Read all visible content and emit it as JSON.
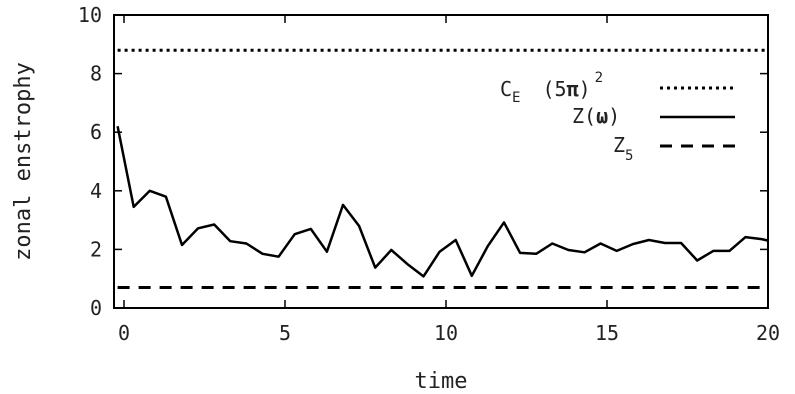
{
  "chart_data": {
    "type": "line",
    "xlabel": "time",
    "ylabel": "zonal enstrophy",
    "xlim": [
      0,
      20
    ],
    "ylim": [
      0,
      10
    ],
    "xticks": [
      0,
      5,
      10,
      15,
      20
    ],
    "yticks": [
      0,
      2,
      4,
      6,
      8,
      10
    ],
    "grid": false,
    "legend_position": "top-right",
    "legend": {
      "ce": {
        "main": "C",
        "sub": "E",
        "mid": "(5",
        "pi": "π",
        "close": ")",
        "sup": "2"
      },
      "zw": {
        "main": "Z(",
        "omega": "ω",
        "close": ")"
      },
      "z5": {
        "main": "Z",
        "sub": "5"
      }
    },
    "series": [
      {
        "style": "dotted",
        "x": [
          -0.2,
          20
        ],
        "y": [
          8.8,
          8.8
        ]
      },
      {
        "style": "solid",
        "x": [
          -0.2,
          0.3,
          0.8,
          1.3,
          1.8,
          2.3,
          2.8,
          3.3,
          3.8,
          4.3,
          4.8,
          5.3,
          5.8,
          6.3,
          6.8,
          7.3,
          7.8,
          8.3,
          8.8,
          9.3,
          9.8,
          10.3,
          10.8,
          11.3,
          11.8,
          12.3,
          12.8,
          13.3,
          13.8,
          14.3,
          14.8,
          15.3,
          15.8,
          16.3,
          16.8,
          17.3,
          17.8,
          18.3,
          18.8,
          19.3,
          19.8,
          20.0
        ],
        "y": [
          6.2,
          3.45,
          4.0,
          3.8,
          2.15,
          2.72,
          2.85,
          2.28,
          2.2,
          1.85,
          1.75,
          2.52,
          2.7,
          1.92,
          3.52,
          2.8,
          1.38,
          1.98,
          1.5,
          1.08,
          1.92,
          2.32,
          1.1,
          2.12,
          2.92,
          1.88,
          1.85,
          2.2,
          1.98,
          1.9,
          2.2,
          1.95,
          2.18,
          2.32,
          2.22,
          2.22,
          1.62,
          1.95,
          1.95,
          2.42,
          2.35,
          2.3
        ]
      },
      {
        "style": "dashed",
        "x": [
          -0.2,
          20
        ],
        "y": [
          0.7,
          0.7
        ]
      }
    ]
  }
}
